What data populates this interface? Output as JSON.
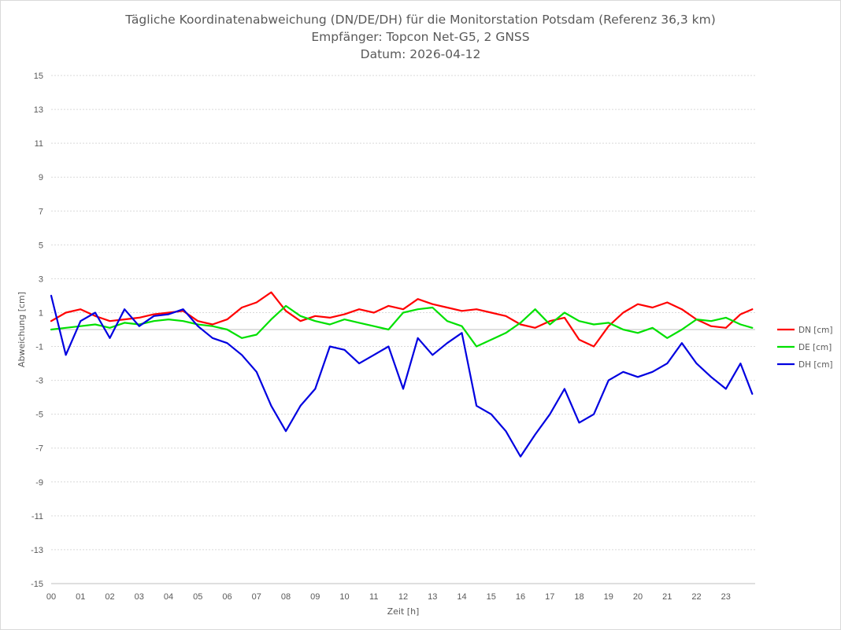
{
  "chart_data": {
    "type": "line",
    "title": "Tägliche Koordinatenabweichung (DN/DE/DH) für die Monitorstation Potsdam (Referenz 36,3 km)",
    "subtitle": "Empfänger: Topcon Net-G5, 2 GNSS",
    "date_line": "Datum: 2026-04-12",
    "xlabel": "Zeit [h]",
    "ylabel": "Abweichung [cm]",
    "xlim": [
      0,
      24
    ],
    "ylim": [
      -15,
      15
    ],
    "x_ticks": [
      "00",
      "01",
      "02",
      "03",
      "04",
      "05",
      "06",
      "07",
      "08",
      "09",
      "10",
      "11",
      "12",
      "13",
      "14",
      "15",
      "16",
      "17",
      "18",
      "19",
      "20",
      "21",
      "22",
      "23"
    ],
    "y_ticks": [
      "15",
      "13",
      "11",
      "9",
      "7",
      "5",
      "3",
      "1",
      "-1",
      "-3",
      "-5",
      "-7",
      "-9",
      "-11",
      "-13",
      "-15"
    ],
    "grid": true,
    "legend_position": "right",
    "x": [
      0,
      0.5,
      1,
      1.5,
      2,
      2.5,
      3,
      3.5,
      4,
      4.5,
      5,
      5.5,
      6,
      6.5,
      7,
      7.5,
      8,
      8.5,
      9,
      9.5,
      10,
      10.5,
      11,
      11.5,
      12,
      12.5,
      13,
      13.5,
      14,
      14.5,
      15,
      15.5,
      16,
      16.5,
      17,
      17.5,
      18,
      18.5,
      19,
      19.5,
      20,
      20.5,
      21,
      21.5,
      22,
      22.5,
      23,
      23.5,
      23.9
    ],
    "series": [
      {
        "name": "DN [cm]",
        "color": "#ff0000",
        "values": [
          0.5,
          1.0,
          1.2,
          0.8,
          0.5,
          0.6,
          0.7,
          0.9,
          1.0,
          1.1,
          0.5,
          0.3,
          0.6,
          1.3,
          1.6,
          2.2,
          1.1,
          0.5,
          0.8,
          0.7,
          0.9,
          1.2,
          1.0,
          1.4,
          1.2,
          1.8,
          1.5,
          1.3,
          1.1,
          1.2,
          1.0,
          0.8,
          0.3,
          0.1,
          0.5,
          0.7,
          -0.6,
          -1.0,
          0.2,
          1.0,
          1.5,
          1.3,
          1.6,
          1.2,
          0.6,
          0.2,
          0.1,
          0.9,
          1.2
        ]
      },
      {
        "name": "DE [cm]",
        "color": "#00e000",
        "values": [
          0.0,
          0.1,
          0.2,
          0.3,
          0.1,
          0.4,
          0.3,
          0.5,
          0.6,
          0.5,
          0.3,
          0.2,
          0.0,
          -0.5,
          -0.3,
          0.6,
          1.4,
          0.8,
          0.5,
          0.3,
          0.6,
          0.4,
          0.2,
          0.0,
          1.0,
          1.2,
          1.3,
          0.5,
          0.2,
          -1.0,
          -0.6,
          -0.2,
          0.4,
          1.2,
          0.3,
          1.0,
          0.5,
          0.3,
          0.4,
          0.0,
          -0.2,
          0.1,
          -0.5,
          0.0,
          0.6,
          0.5,
          0.7,
          0.3,
          0.1
        ]
      },
      {
        "name": "DH [cm]",
        "color": "#0000e0",
        "values": [
          2.0,
          -1.5,
          0.5,
          1.0,
          -0.5,
          1.2,
          0.2,
          0.8,
          0.9,
          1.2,
          0.2,
          -0.5,
          -0.8,
          -1.5,
          -2.5,
          -4.5,
          -6.0,
          -4.5,
          -3.5,
          -1.0,
          -1.2,
          -2.0,
          -1.5,
          -1.0,
          -3.5,
          -0.5,
          -1.5,
          -0.8,
          -0.2,
          -4.5,
          -5.0,
          -6.0,
          -7.5,
          -6.2,
          -5.0,
          -3.5,
          -5.5,
          -5.0,
          -3.0,
          -2.5,
          -2.8,
          -2.5,
          -2.0,
          -0.8,
          -2.0,
          -2.8,
          -3.5,
          -2.0,
          -3.8
        ]
      }
    ]
  }
}
